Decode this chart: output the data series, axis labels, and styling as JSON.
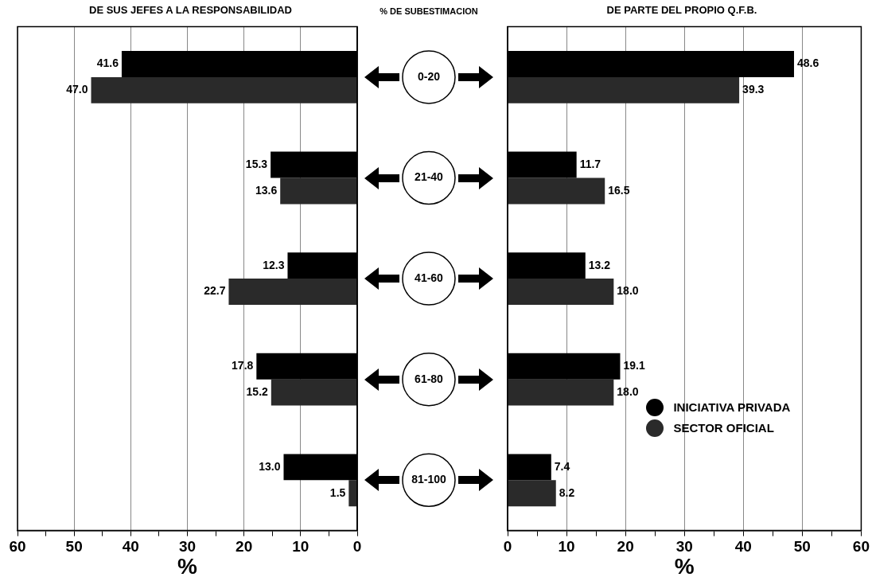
{
  "chart_data": [
    {
      "type": "bar",
      "orientation": "horizontal",
      "title": "DE SUS JEFES A LA RESPONSABILIDAD",
      "xlabel": "%",
      "annotations": [
        "% DE SUBESTIMACION"
      ],
      "categories": [
        "0-20",
        "21-40",
        "41-60",
        "61-80",
        "81-100"
      ],
      "series": [
        {
          "color": "#000000",
          "values": [
            41.6,
            15.3,
            12.3,
            17.8,
            13.0
          ],
          "value_labels": [
            "41.6",
            "15.3",
            "12.3",
            "17.8",
            "13.0"
          ]
        },
        {
          "color": "#2a2a2a",
          "values": [
            47.0,
            13.6,
            22.7,
            15.2,
            1.5
          ],
          "value_labels": [
            "47.0",
            "13.6",
            "22.7",
            "15.2",
            "1.5"
          ]
        }
      ],
      "xlim": [
        60,
        0
      ],
      "xticks": [
        60,
        {
          "value": 55,
          "label": null
        },
        50,
        {
          "value": 45,
          "label": null
        },
        40,
        {
          "value": 35,
          "label": null
        },
        30,
        {
          "value": 25,
          "label": null
        },
        20,
        {
          "value": 15,
          "label": null
        },
        10,
        {
          "value": 5,
          "label": null
        },
        0
      ],
      "grid": "x",
      "legend": false
    },
    {
      "type": "bar",
      "orientation": "horizontal",
      "title": "DE PARTE DEL PROPIO Q.F.B.",
      "xlabel": "%",
      "categories": [
        null,
        null,
        null,
        null,
        null
      ],
      "tick_labels": "x",
      "series": [
        {
          "name": "INICIATIVA PRIVADA",
          "color": "#000000",
          "values": [
            48.6,
            11.7,
            13.2,
            19.1,
            7.4
          ],
          "value_labels": [
            "48.6",
            "11.7",
            "13.2",
            "19.1",
            "7.4"
          ]
        },
        {
          "name": "SECTOR OFICIAL",
          "color": "#2a2a2a",
          "values": [
            39.3,
            16.5,
            18.0,
            18.0,
            8.2
          ],
          "value_labels": [
            "39.3",
            "16.5",
            "18.0",
            "18.0",
            "8.2"
          ]
        }
      ],
      "xlim": [
        0,
        60
      ],
      "xticks": [
        0,
        {
          "value": 5,
          "label": null
        },
        10,
        {
          "value": 15,
          "label": null
        },
        20,
        {
          "value": 25,
          "label": null
        },
        30,
        {
          "value": 35,
          "label": null
        },
        40,
        {
          "value": 45,
          "label": null
        },
        50,
        {
          "value": 55,
          "label": null
        },
        60
      ],
      "grid": "x",
      "legend": "bottom right"
    }
  ]
}
